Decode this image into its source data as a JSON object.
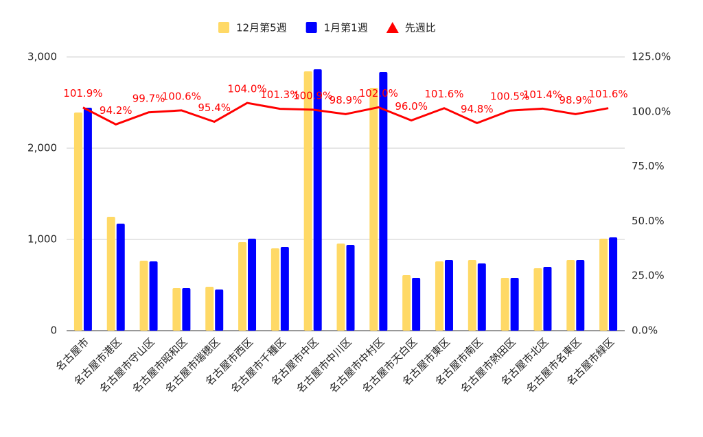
{
  "chart_data": {
    "type": "bar_line",
    "categories": [
      "名古屋市",
      "名古屋市港区",
      "名古屋市守山区",
      "名古屋市昭和区",
      "名古屋市瑞穂区",
      "名古屋市西区",
      "名古屋市千種区",
      "名古屋市中区",
      "名古屋市中川区",
      "名古屋市中村区",
      "名古屋市天白区",
      "名古屋市東区",
      "名古屋市南区",
      "名古屋市熱田区",
      "名古屋市北区",
      "名古屋市名東区",
      "名古屋市緑区"
    ],
    "series": [
      {
        "name": "12月第5週",
        "type": "bar",
        "color": "#ffd966",
        "values": [
          2391,
          1248,
          767,
          466,
          481,
          970,
          902,
          2842,
          955,
          2662,
          609,
          759,
          774,
          579,
          684,
          774,
          1008
        ]
      },
      {
        "name": "1月第1週",
        "type": "bar",
        "color": "#0000ff",
        "values": [
          2444,
          1173,
          759,
          466,
          451,
          1008,
          917,
          2865,
          940,
          2835,
          579,
          774,
          737,
          579,
          699,
          774,
          1023
        ]
      },
      {
        "name": "先週比",
        "type": "line",
        "axis": "y2",
        "color": "#ff0000",
        "values": [
          101.9,
          94.2,
          99.7,
          100.6,
          95.4,
          104.0,
          101.3,
          100.9,
          98.9,
          102.0,
          96.0,
          101.6,
          94.8,
          100.5,
          101.4,
          98.9,
          101.6
        ],
        "value_labels": [
          "101.9%",
          "94.2%",
          "99.7%",
          "100.6%",
          "95.4%",
          "104.0%",
          "101.3%",
          "100.9%",
          "98.9%",
          "102.0%",
          "96.0%",
          "101.6%",
          "94.8%",
          "100.5%",
          "101.4%",
          "98.9%",
          "101.6%"
        ]
      }
    ],
    "ylim": [
      0,
      3000
    ],
    "yticks": [
      0,
      {
        "value": 1000,
        "label": "1,000"
      },
      {
        "value": 2000,
        "label": "2,000"
      },
      {
        "value": 3000,
        "label": "3,000"
      }
    ],
    "y2lim": [
      0,
      125
    ],
    "y2ticks": [
      {
        "value": 0,
        "label": "0.0%"
      },
      {
        "value": 25,
        "label": "25.0%"
      },
      {
        "value": 50,
        "label": "50.0%"
      },
      {
        "value": 75,
        "label": "75.0%"
      },
      {
        "value": 100,
        "label": "100.0%"
      },
      {
        "value": 125,
        "label": "125.0%"
      }
    ],
    "grid": true,
    "legend": "top"
  }
}
